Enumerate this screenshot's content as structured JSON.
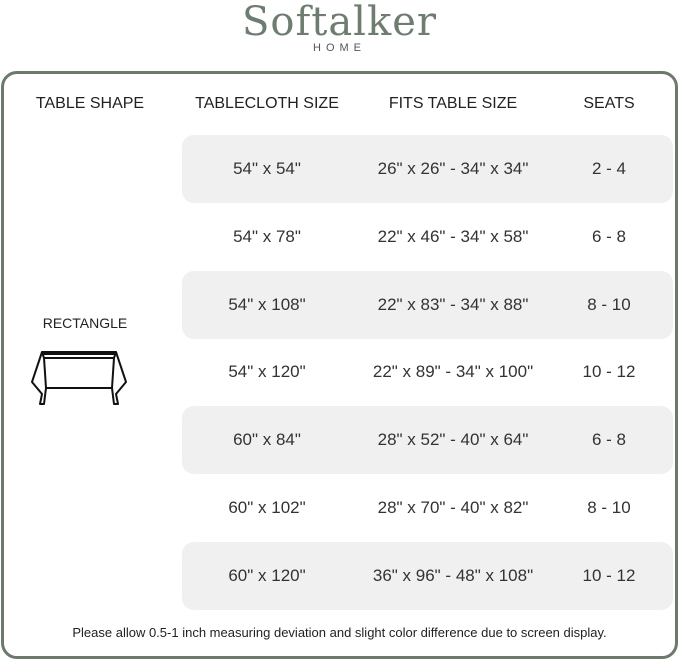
{
  "logo": {
    "brand": "Softalker",
    "sub": "HOME"
  },
  "headers": [
    "TABLE SHAPE",
    "TABLECLOTH SIZE",
    "FITS TABLE SIZE",
    "SEATS"
  ],
  "shape": {
    "label": "RECTANGLE",
    "icon": "rectangle-table-icon"
  },
  "rows": [
    {
      "size": "54\" x 54\"",
      "fits": "26\" x 26\" - 34\" x 34\"",
      "seats": "2 - 4"
    },
    {
      "size": "54\" x 78\"",
      "fits": "22\" x 46\" - 34\" x 58\"",
      "seats": "6 - 8"
    },
    {
      "size": "54\" x 108\"",
      "fits": "22\" x 83\" - 34\" x 88\"",
      "seats": "8 - 10"
    },
    {
      "size": "54\" x 120\"",
      "fits": "22\" x 89\" - 34\" x 100\"",
      "seats": "10 - 12"
    },
    {
      "size": "60\" x 84\"",
      "fits": "28\" x 52\" - 40\" x 64\"",
      "seats": "6 - 8"
    },
    {
      "size": "60\" x 102\"",
      "fits": "28\" x 70\" - 40\" x 82\"",
      "seats": "8 - 10"
    },
    {
      "size": "60\" x 120\"",
      "fits": "36\" x 96\" - 48\" x 108\"",
      "seats": "10 - 12"
    }
  ],
  "note": "Please allow 0.5-1 inch measuring deviation and slight color difference due to screen display.",
  "colors": {
    "frame": "#6b7a6d",
    "shade": "#f0f0f0",
    "brand": "#6e7d70"
  }
}
